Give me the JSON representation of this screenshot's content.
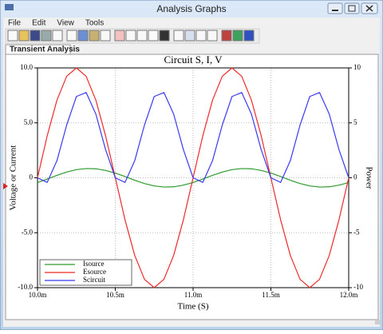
{
  "window": {
    "title": "Analysis Graphs"
  },
  "menu": [
    "File",
    "Edit",
    "View",
    "Tools"
  ],
  "tab": "Transient Analysis",
  "chart_data": {
    "type": "line",
    "title": "Circuit S, I, V",
    "x_label": "Time (S)",
    "y_label": "Voltage or Current",
    "y2_label": "Power",
    "x": [
      0.01,
      0.0100625,
      0.010125,
      0.0101875,
      0.01025,
      0.0103125,
      0.010375,
      0.0104375,
      0.0105,
      0.0105625,
      0.010625,
      0.0106875,
      0.01075,
      0.0108125,
      0.010875,
      0.0109375,
      0.011,
      0.0110625,
      0.011125,
      0.0111875,
      0.01125,
      0.0113125,
      0.011375,
      0.0114375,
      0.0115,
      0.0115625,
      0.011625,
      0.0116875,
      0.01175,
      0.0118125,
      0.011875,
      0.0119375,
      0.012
    ],
    "xlim": [
      0.01,
      0.012
    ],
    "xticks": [
      {
        "value": 0.01,
        "label": "10.0m"
      },
      {
        "value": 0.0105,
        "label": "10.5m"
      },
      {
        "value": 0.011,
        "label": "11.0m"
      },
      {
        "value": 0.0115,
        "label": "11.5m"
      },
      {
        "value": 0.012,
        "label": "12.0m"
      }
    ],
    "ylim": [
      -10,
      10
    ],
    "yticks": [
      {
        "value": -10,
        "label": "-10.0"
      },
      {
        "value": -5,
        "label": "-5.0"
      },
      0,
      {
        "value": 5,
        "label": "5.0"
      },
      {
        "value": 10,
        "label": "10.0"
      }
    ],
    "y2lim": [
      -10,
      10
    ],
    "y2ticks": [
      -10,
      -5,
      0,
      5,
      10
    ],
    "grid": true,
    "legend": "lower left",
    "series": [
      {
        "name": "Isource",
        "color": "#2e9a2e",
        "values": [
          -0.43,
          -0.11,
          0.22,
          0.52,
          0.74,
          0.84,
          0.82,
          0.67,
          0.43,
          0.11,
          -0.22,
          -0.52,
          -0.74,
          -0.84,
          -0.82,
          -0.67,
          -0.43,
          -0.11,
          0.22,
          0.52,
          0.74,
          0.84,
          0.82,
          0.67,
          0.43,
          0.11,
          -0.22,
          -0.52,
          -0.74,
          -0.84,
          -0.82,
          -0.67,
          -0.43
        ]
      },
      {
        "name": "Esource",
        "color": "#ee2a2a",
        "values": [
          0,
          3.83,
          7.07,
          9.24,
          10,
          9.24,
          7.07,
          3.83,
          0,
          -3.83,
          -7.07,
          -9.24,
          -10,
          -9.24,
          -7.07,
          -3.83,
          0,
          3.83,
          7.07,
          9.24,
          10,
          9.24,
          7.07,
          3.83,
          0,
          -3.83,
          -7.07,
          -9.24,
          -10,
          -9.24,
          -7.07,
          -3.83,
          0
        ]
      },
      {
        "name": "Scircuit",
        "color": "#3a3af0",
        "axis": "y2",
        "values": [
          0,
          -0.42,
          1.56,
          4.8,
          7.4,
          7.76,
          5.8,
          2.57,
          0,
          -0.42,
          1.56,
          4.8,
          7.4,
          7.76,
          5.8,
          2.57,
          0,
          -0.42,
          1.56,
          4.8,
          7.4,
          7.76,
          5.8,
          2.57,
          0,
          -0.42,
          1.56,
          4.8,
          7.4,
          7.76,
          5.8,
          2.57,
          0
        ]
      }
    ]
  }
}
